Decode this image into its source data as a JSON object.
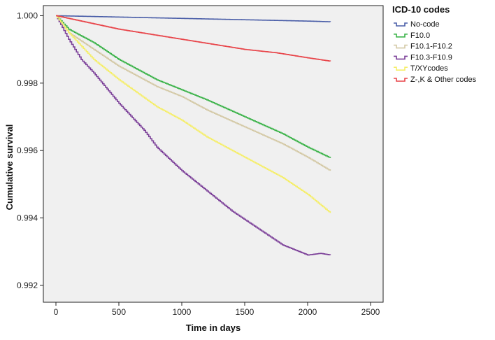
{
  "chart_data": {
    "type": "line",
    "xlabel": "Time in days",
    "ylabel": "Cumulative survival",
    "xlim": [
      -100,
      2600
    ],
    "ylim": [
      0.9915,
      1.0003
    ],
    "xticks": [
      0,
      500,
      1000,
      1500,
      2000,
      2500
    ],
    "yticks": [
      0.992,
      0.994,
      0.996,
      0.998,
      1.0
    ],
    "ytick_labels": [
      "0.992",
      "0.994",
      "0.996",
      "0.998",
      "1.000"
    ],
    "plot_background": "#f0f0f0",
    "grid": false,
    "legend_title": "ICD-10 codes",
    "legend_position": "right",
    "series": [
      {
        "name": "No-code",
        "color": "#4a5ea8",
        "x": [
          0,
          500,
          1000,
          1500,
          2000,
          2180
        ],
        "y": [
          1.0,
          0.99996,
          0.99992,
          0.99988,
          0.99984,
          0.99982
        ]
      },
      {
        "name": "F10.0",
        "color": "#3cb34a",
        "x": [
          0,
          100,
          300,
          500,
          800,
          1000,
          1200,
          1500,
          1800,
          2000,
          2180
        ],
        "y": [
          1.0,
          0.9996,
          0.9992,
          0.9987,
          0.9981,
          0.9978,
          0.9975,
          0.997,
          0.9965,
          0.9961,
          0.99578
        ]
      },
      {
        "name": "F10.1-F10.2",
        "color": "#d4c9a6",
        "x": [
          0,
          100,
          300,
          500,
          800,
          1000,
          1200,
          1500,
          1800,
          2000,
          2180
        ],
        "y": [
          1.0,
          0.9995,
          0.999,
          0.9985,
          0.9979,
          0.9976,
          0.9972,
          0.9967,
          0.9962,
          0.9958,
          0.9954
        ]
      },
      {
        "name": "F10.3-F10.9",
        "color": "#7b3f98",
        "x": [
          0,
          100,
          200,
          300,
          500,
          700,
          800,
          1000,
          1200,
          1400,
          1600,
          1800,
          2000,
          2100,
          2180
        ],
        "y": [
          1.0,
          0.9993,
          0.9987,
          0.9983,
          0.9974,
          0.9966,
          0.9961,
          0.9954,
          0.9948,
          0.9942,
          0.9937,
          0.9932,
          0.9929,
          0.99295,
          0.9929
        ]
      },
      {
        "name": "T/XYcodes",
        "color": "#f5ee6a",
        "x": [
          0,
          100,
          300,
          500,
          800,
          1000,
          1200,
          1500,
          1800,
          2000,
          2180
        ],
        "y": [
          1.0,
          0.9995,
          0.9987,
          0.9981,
          0.9973,
          0.9969,
          0.9964,
          0.9958,
          0.9952,
          0.9947,
          0.99415
        ]
      },
      {
        "name": "Z-,K & Other codes",
        "color": "#e8454a",
        "x": [
          0,
          250,
          500,
          750,
          1000,
          1250,
          1500,
          1750,
          2000,
          2180
        ],
        "y": [
          1.0,
          0.9998,
          0.9996,
          0.99945,
          0.9993,
          0.99915,
          0.999,
          0.9989,
          0.99875,
          0.99865
        ]
      }
    ]
  }
}
